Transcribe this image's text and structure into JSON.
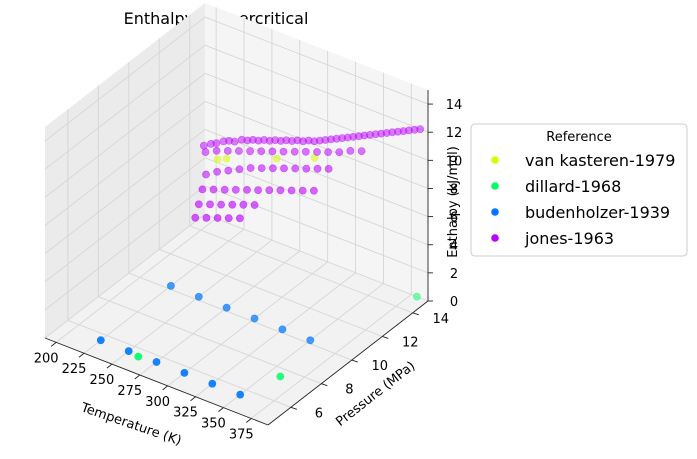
{
  "chart_data": {
    "type": "scatter",
    "projection": "3d",
    "title": "Enthalpy - supercritical",
    "xlabel": "Temperature (K)",
    "ylabel": "Pressure (MPa)",
    "zlabel": "Enthalpy (kJ/mol)",
    "xlim": [
      190,
      390
    ],
    "ylim": [
      4.5,
      15
    ],
    "zlim": [
      0,
      15
    ],
    "xticks": [
      200,
      225,
      250,
      275,
      300,
      325,
      350,
      375
    ],
    "yticks": [
      6,
      8,
      10,
      12,
      14
    ],
    "zticks": [
      0,
      2,
      4,
      6,
      8,
      10,
      12,
      14
    ],
    "grid": true,
    "legend": {
      "title": "Reference",
      "placement": "right"
    },
    "series": [
      {
        "name": "van kasteren-1979",
        "color": "#d4ff00",
        "points": [
          [
            215,
            14,
            5.5
          ],
          [
            223,
            14,
            5.8
          ],
          [
            268,
            14,
            7.2
          ],
          [
            302,
            14,
            8.3
          ]
        ]
      },
      {
        "name": "dillard-1968",
        "color": "#00ff66",
        "points": [
          [
            260,
            5.5,
            0
          ],
          [
            360,
            7.5,
            0
          ],
          [
            380,
            15,
            0
          ]
        ]
      },
      {
        "name": "budenholzer-1939",
        "color": "#0077ff",
        "points": [
          [
            225,
            5.6,
            0
          ],
          [
            250,
            5.6,
            0
          ],
          [
            275,
            5.6,
            0
          ],
          [
            300,
            5.6,
            0
          ],
          [
            325,
            5.6,
            0
          ],
          [
            350,
            5.6,
            0
          ],
          [
            225,
            10.2,
            0
          ],
          [
            250,
            10.2,
            0
          ],
          [
            275,
            10.2,
            0
          ],
          [
            300,
            10.2,
            0
          ],
          [
            325,
            10.2,
            0
          ],
          [
            350,
            10.2,
            0
          ]
        ]
      },
      {
        "name": "jones-1963",
        "color": "#bb00ff",
        "points": [
          [
            193,
            14.7,
            5.2
          ],
          [
            198,
            14.8,
            5.4
          ],
          [
            203,
            14.8,
            5.6
          ],
          [
            208,
            14.9,
            5.8
          ],
          [
            213,
            14.9,
            6.0
          ],
          [
            218,
            14.9,
            6.1
          ],
          [
            223,
            15,
            6.3
          ],
          [
            228,
            15,
            6.4
          ],
          [
            233,
            15,
            6.6
          ],
          [
            238,
            15,
            6.7
          ],
          [
            243,
            15,
            6.9
          ],
          [
            248,
            15,
            7.0
          ],
          [
            253,
            15,
            7.2
          ],
          [
            258,
            15,
            7.3
          ],
          [
            263,
            15,
            7.5
          ],
          [
            268,
            15,
            7.6
          ],
          [
            273,
            15,
            7.8
          ],
          [
            278,
            15,
            7.9
          ],
          [
            283,
            15,
            8.1
          ],
          [
            288,
            15,
            8.2
          ],
          [
            293,
            15,
            8.4
          ],
          [
            298,
            15,
            8.6
          ],
          [
            303,
            15,
            8.8
          ],
          [
            308,
            15,
            9.0
          ],
          [
            313,
            15,
            9.2
          ],
          [
            318,
            15,
            9.4
          ],
          [
            323,
            15,
            9.6
          ],
          [
            328,
            15,
            9.8
          ],
          [
            333,
            15,
            10.0
          ],
          [
            338,
            15,
            10.2
          ],
          [
            343,
            15,
            10.4
          ],
          [
            348,
            15,
            10.6
          ],
          [
            353,
            15,
            10.8
          ],
          [
            358,
            15,
            11.0
          ],
          [
            363,
            15,
            11.2
          ],
          [
            368,
            15,
            11.4
          ],
          [
            373,
            15,
            11.6
          ],
          [
            378,
            15,
            11.8
          ],
          [
            383,
            15,
            12.0
          ],
          [
            200,
            14.3,
            5.3
          ],
          [
            210,
            14.3,
            5.7
          ],
          [
            220,
            14.3,
            6.0
          ],
          [
            230,
            14.3,
            6.3
          ],
          [
            240,
            14.3,
            6.6
          ],
          [
            250,
            14.3,
            6.9
          ],
          [
            260,
            14.3,
            7.2
          ],
          [
            270,
            14.3,
            7.5
          ],
          [
            280,
            14.3,
            7.8
          ],
          [
            290,
            14.3,
            8.1
          ],
          [
            300,
            14.3,
            8.4
          ],
          [
            310,
            14.3,
            8.7
          ],
          [
            320,
            14.3,
            9.0
          ],
          [
            330,
            14.3,
            9.4
          ],
          [
            340,
            14.3,
            9.7
          ],
          [
            210,
            13.6,
            4.6
          ],
          [
            220,
            13.6,
            5.1
          ],
          [
            230,
            13.6,
            5.5
          ],
          [
            240,
            13.6,
            5.9
          ],
          [
            250,
            13.6,
            6.3
          ],
          [
            260,
            13.6,
            6.6
          ],
          [
            270,
            13.6,
            6.9
          ],
          [
            280,
            13.6,
            7.2
          ],
          [
            290,
            13.6,
            7.5
          ],
          [
            300,
            13.6,
            7.8
          ],
          [
            310,
            13.6,
            8.1
          ],
          [
            320,
            13.6,
            8.4
          ],
          [
            215,
            13.0,
            4.2
          ],
          [
            225,
            13.0,
            4.5
          ],
          [
            235,
            13.0,
            4.8
          ],
          [
            245,
            13.0,
            5.1
          ],
          [
            255,
            13.0,
            5.4
          ],
          [
            265,
            13.0,
            5.7
          ],
          [
            275,
            13.0,
            6.0
          ],
          [
            285,
            13.0,
            6.3
          ],
          [
            295,
            13.0,
            6.6
          ],
          [
            305,
            13.0,
            6.9
          ],
          [
            315,
            13.0,
            7.2
          ],
          [
            220,
            12.4,
            3.8
          ],
          [
            230,
            12.4,
            4.1
          ],
          [
            240,
            12.4,
            4.4
          ],
          [
            250,
            12.4,
            4.7
          ],
          [
            260,
            12.4,
            5.0
          ],
          [
            270,
            12.4,
            5.3
          ],
          [
            225,
            11.8,
            3.5
          ],
          [
            235,
            11.8,
            3.8
          ],
          [
            245,
            11.8,
            4.1
          ],
          [
            255,
            11.8,
            4.4
          ],
          [
            265,
            11.8,
            4.7
          ]
        ]
      }
    ]
  }
}
